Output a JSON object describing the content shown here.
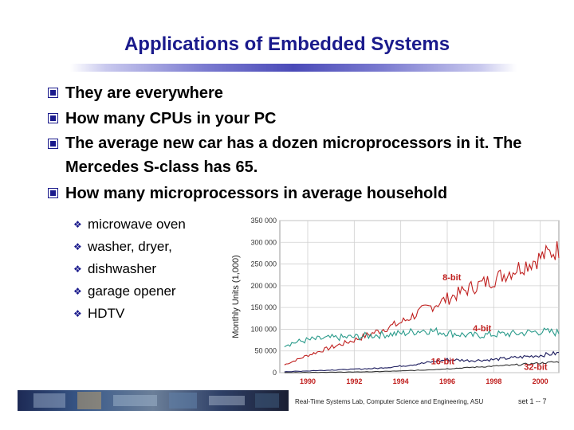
{
  "title": "Applications of Embedded Systems",
  "bullets": [
    {
      "text": "They are everywhere"
    },
    {
      "text": "How many CPUs in your PC"
    },
    {
      "text": "The average new car has a dozen microprocessors in it. The Mercedes S-class has 65."
    },
    {
      "text": "How many microprocessors in average household"
    }
  ],
  "sub_bullets": [
    {
      "text": "microwave oven"
    },
    {
      "text": "washer, dryer,"
    },
    {
      "text": "dishwasher"
    },
    {
      "text": "garage opener"
    },
    {
      "text": "HDTV"
    }
  ],
  "footer": "Real-Time Systems Lab, Computer Science and Engineering, ASU",
  "slide_number": "set 1 -- 7",
  "colors": {
    "title": "#1a1a8c",
    "bullet": "#1a1a8c",
    "label_red": "#c0201f"
  },
  "chart_data": {
    "type": "line",
    "ylabel": "Monthly Units (1,000)",
    "xlim": [
      1988.8,
      2000.8
    ],
    "ylim": [
      0,
      350000
    ],
    "yticks": [
      "0",
      "50 000",
      "100 000",
      "150 000",
      "200 000",
      "250 000",
      "300 000",
      "350 000"
    ],
    "xticks": [
      "1990",
      "1992",
      "1994",
      "1996",
      "1998",
      "2000"
    ],
    "series": [
      {
        "name": "8-bit",
        "color": "#c0201f",
        "x": [
          1989,
          1990,
          1991,
          1992,
          1993,
          1994,
          1995,
          1996,
          1997,
          1998,
          1999,
          2000,
          2000.8
        ],
        "values": [
          18000,
          40000,
          58000,
          75000,
          95000,
          115000,
          145000,
          170000,
          195000,
          215000,
          240000,
          265000,
          285000
        ]
      },
      {
        "name": "4-bit",
        "color": "#2a9b8b",
        "x": [
          1989,
          1990,
          1991,
          1992,
          1993,
          1994,
          1995,
          1996,
          1997,
          1998,
          1999,
          2000,
          2000.8
        ],
        "values": [
          65000,
          75000,
          80000,
          82000,
          87000,
          90000,
          98000,
          92000,
          85000,
          88000,
          90000,
          95000,
          92000
        ]
      },
      {
        "name": "16-bit",
        "color": "#1a1a5c",
        "x": [
          1989,
          1990,
          1991,
          1992,
          1993,
          1994,
          1995,
          1996,
          1997,
          1998,
          1999,
          2000,
          2000.8
        ],
        "values": [
          2000,
          4000,
          6000,
          8000,
          10000,
          15000,
          22000,
          30000,
          28000,
          30000,
          35000,
          40000,
          45000
        ]
      },
      {
        "name": "32-bit",
        "color": "#333333",
        "x": [
          1989,
          1990,
          1991,
          1992,
          1993,
          1994,
          1995,
          1996,
          1997,
          1998,
          1999,
          2000,
          2000.8
        ],
        "values": [
          0,
          500,
          1000,
          1500,
          2500,
          4000,
          6000,
          9000,
          12000,
          15000,
          18000,
          22000,
          25000
        ]
      }
    ]
  }
}
